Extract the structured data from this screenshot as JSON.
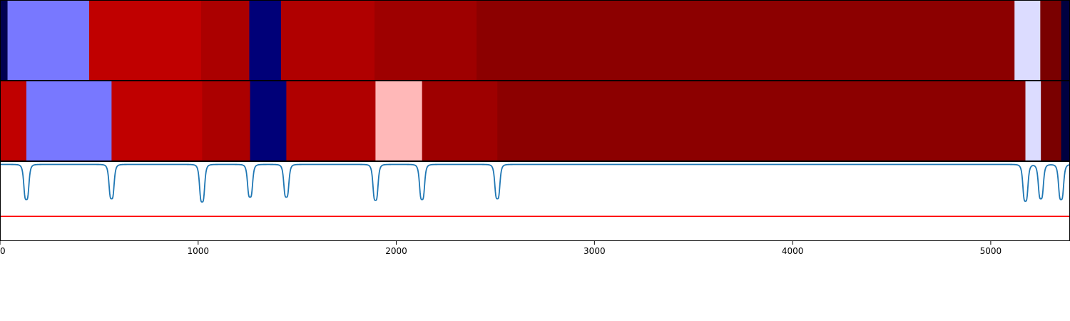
{
  "chart_data": {
    "type": "heatmap",
    "title": "",
    "xlabel": "",
    "ylabel": "",
    "xlim": [
      0,
      5400
    ],
    "x_ticks": [
      0,
      1000,
      2000,
      3000,
      4000,
      5000
    ],
    "x_tick_labels": [
      "0",
      "1000",
      "2000",
      "3000",
      "4000",
      "5000"
    ],
    "grid": false,
    "legend": "none",
    "rows": [
      {
        "segments": [
          {
            "start": 0,
            "end": 38,
            "color": "#000050"
          },
          {
            "start": 38,
            "end": 450,
            "color": "#7878ff"
          },
          {
            "start": 450,
            "end": 1015,
            "color": "#c00000"
          },
          {
            "start": 1015,
            "end": 1258,
            "color": "#ab0000"
          },
          {
            "start": 1258,
            "end": 1418,
            "color": "#000078"
          },
          {
            "start": 1418,
            "end": 1890,
            "color": "#b00000"
          },
          {
            "start": 1890,
            "end": 2405,
            "color": "#9e0000"
          },
          {
            "start": 2405,
            "end": 5120,
            "color": "#8c0000"
          },
          {
            "start": 5120,
            "end": 5250,
            "color": "#dcdcff"
          },
          {
            "start": 5250,
            "end": 5355,
            "color": "#7a0000"
          },
          {
            "start": 5355,
            "end": 5400,
            "color": "#000040"
          }
        ]
      },
      {
        "segments": [
          {
            "start": 0,
            "end": 133,
            "color": "#c00000"
          },
          {
            "start": 133,
            "end": 563,
            "color": "#7878ff"
          },
          {
            "start": 563,
            "end": 1020,
            "color": "#c00000"
          },
          {
            "start": 1020,
            "end": 1262,
            "color": "#ab0000"
          },
          {
            "start": 1262,
            "end": 1445,
            "color": "#000078"
          },
          {
            "start": 1445,
            "end": 1895,
            "color": "#b00000"
          },
          {
            "start": 1895,
            "end": 2130,
            "color": "#ffb8b8"
          },
          {
            "start": 2130,
            "end": 2510,
            "color": "#9e0000"
          },
          {
            "start": 2510,
            "end": 5175,
            "color": "#8c0000"
          },
          {
            "start": 5175,
            "end": 5253,
            "color": "#dcdcff"
          },
          {
            "start": 5253,
            "end": 5355,
            "color": "#7a0000"
          },
          {
            "start": 5355,
            "end": 5400,
            "color": "#000040"
          }
        ]
      }
    ],
    "signal": {
      "color": "#1f77b4",
      "ylim": [
        0,
        1
      ],
      "baseline": 0.96,
      "dips": [
        {
          "x": 133,
          "value": 0.52
        },
        {
          "x": 563,
          "value": 0.53
        },
        {
          "x": 1020,
          "value": 0.49
        },
        {
          "x": 1262,
          "value": 0.55
        },
        {
          "x": 1445,
          "value": 0.55
        },
        {
          "x": 1895,
          "value": 0.51
        },
        {
          "x": 2130,
          "value": 0.52
        },
        {
          "x": 2510,
          "value": 0.53
        },
        {
          "x": 5175,
          "value": 0.5
        },
        {
          "x": 5253,
          "value": 0.53
        },
        {
          "x": 5355,
          "value": 0.52
        }
      ]
    },
    "threshold": {
      "value": 0.31,
      "color": "#ff0000"
    }
  }
}
